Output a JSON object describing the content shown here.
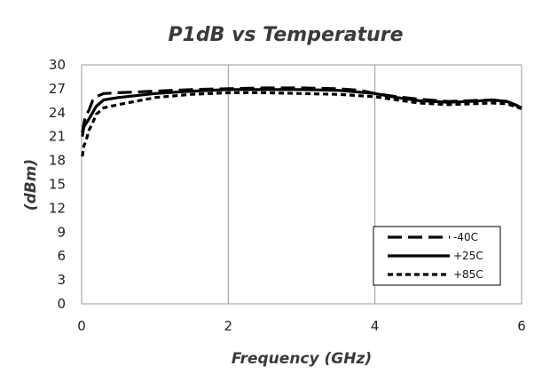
{
  "chart_data": {
    "type": "line",
    "title": "P1dB vs Temperature",
    "xlabel": "Frequency (GHz)",
    "ylabel": "(dBm)",
    "xlim": [
      0,
      6
    ],
    "ylim": [
      0,
      30
    ],
    "xticks": [
      0,
      2,
      4,
      6
    ],
    "yticks": [
      0,
      3,
      6,
      9,
      12,
      15,
      18,
      21,
      24,
      27,
      30
    ],
    "grid": "vertical",
    "legend_position": "bottom-right",
    "series": [
      {
        "name": "-40C",
        "style": "long-dash",
        "color": "#000000",
        "points": [
          [
            0.01,
            21.5
          ],
          [
            0.05,
            23.5
          ],
          [
            0.1,
            24.3
          ],
          [
            0.15,
            25.5
          ],
          [
            0.2,
            26.0
          ],
          [
            0.3,
            26.4
          ],
          [
            0.5,
            26.5
          ],
          [
            1,
            26.7
          ],
          [
            1.5,
            26.9
          ],
          [
            2,
            27.0
          ],
          [
            2.5,
            27.1
          ],
          [
            3,
            27.1
          ],
          [
            3.5,
            27.0
          ],
          [
            3.8,
            26.8
          ],
          [
            4,
            26.4
          ],
          [
            4.3,
            26.0
          ],
          [
            4.6,
            25.7
          ],
          [
            5,
            25.4
          ],
          [
            5.3,
            25.5
          ],
          [
            5.6,
            25.6
          ],
          [
            5.8,
            25.4
          ],
          [
            6,
            24.7
          ]
        ]
      },
      {
        "name": "+25C",
        "style": "solid",
        "color": "#000000",
        "points": [
          [
            0.01,
            21.0
          ],
          [
            0.03,
            22.2
          ],
          [
            0.05,
            22.5
          ],
          [
            0.1,
            23.2
          ],
          [
            0.2,
            24.8
          ],
          [
            0.3,
            25.6
          ],
          [
            0.5,
            25.9
          ],
          [
            1,
            26.4
          ],
          [
            1.5,
            26.7
          ],
          [
            2,
            26.9
          ],
          [
            2.5,
            26.9
          ],
          [
            3,
            26.9
          ],
          [
            3.5,
            26.8
          ],
          [
            4,
            26.4
          ],
          [
            4.3,
            25.9
          ],
          [
            4.6,
            25.5
          ],
          [
            5,
            25.3
          ],
          [
            5.3,
            25.4
          ],
          [
            5.6,
            25.6
          ],
          [
            5.8,
            25.4
          ],
          [
            6,
            24.6
          ]
        ]
      },
      {
        "name": "+85C",
        "style": "short-dash",
        "color": "#000000",
        "points": [
          [
            0.01,
            18.5
          ],
          [
            0.03,
            19.8
          ],
          [
            0.06,
            20.5
          ],
          [
            0.1,
            21.8
          ],
          [
            0.15,
            22.7
          ],
          [
            0.2,
            23.8
          ],
          [
            0.3,
            24.6
          ],
          [
            0.5,
            25.0
          ],
          [
            1,
            25.9
          ],
          [
            1.5,
            26.3
          ],
          [
            2,
            26.5
          ],
          [
            2.5,
            26.5
          ],
          [
            3,
            26.4
          ],
          [
            3.5,
            26.3
          ],
          [
            4,
            26.0
          ],
          [
            4.3,
            25.6
          ],
          [
            4.6,
            25.2
          ],
          [
            5,
            25.0
          ],
          [
            5.3,
            25.1
          ],
          [
            5.6,
            25.2
          ],
          [
            5.8,
            25.1
          ],
          [
            6,
            24.5
          ]
        ]
      }
    ]
  }
}
